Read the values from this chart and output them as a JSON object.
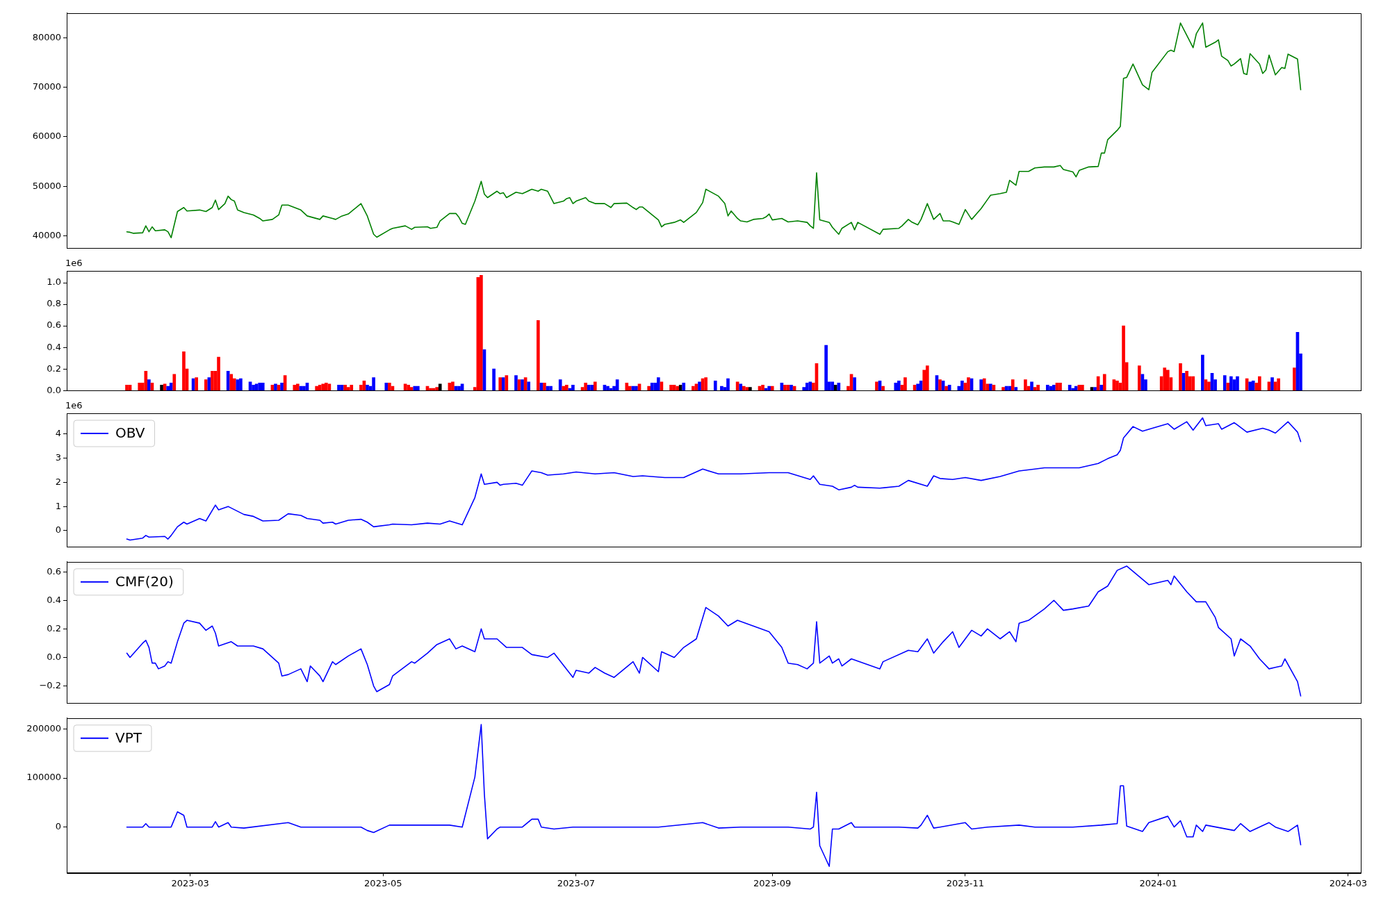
{
  "chart_data": [
    {
      "type": "line",
      "xlim": [
        "2023-01-21",
        "2024-03-05"
      ],
      "ylim": [
        37500,
        85000
      ],
      "yticks": [
        40000,
        50000,
        60000,
        70000,
        80000
      ],
      "tick_labels": "y",
      "x": [
        "2023-02-09",
        "2023-02-10",
        "2023-02-11",
        "2023-02-14",
        "2023-02-15",
        "2023-02-16",
        "2023-02-17",
        "2023-02-18",
        "2023-02-21",
        "2023-02-22",
        "2023-02-23",
        "2023-02-25",
        "2023-02-27",
        "2023-02-28",
        "2023-03-04",
        "2023-03-06",
        "2023-03-08",
        "2023-03-09",
        "2023-03-10",
        "2023-03-12",
        "2023-03-13",
        "2023-03-14",
        "2023-03-15",
        "2023-03-16",
        "2023-03-18",
        "2023-03-21",
        "2023-03-23",
        "2023-03-24",
        "2023-03-27",
        "2023-03-29",
        "2023-03-30",
        "2023-04-01",
        "2023-04-05",
        "2023-04-07",
        "2023-04-11",
        "2023-04-12",
        "2023-04-15",
        "2023-04-16",
        "2023-04-18",
        "2023-04-20",
        "2023-04-24",
        "2023-04-26",
        "2023-04-28",
        "2023-04-29",
        "2023-05-03",
        "2023-05-04",
        "2023-05-08",
        "2023-05-10",
        "2023-05-11",
        "2023-05-15",
        "2023-05-16",
        "2023-05-18",
        "2023-05-19",
        "2023-05-22",
        "2023-05-24",
        "2023-05-25",
        "2023-05-26",
        "2023-05-27",
        "2023-05-30",
        "2023-06-01",
        "2023-06-02",
        "2023-06-03",
        "2023-06-06",
        "2023-06-07",
        "2023-06-08",
        "2023-06-09",
        "2023-06-12",
        "2023-06-14",
        "2023-06-15",
        "2023-06-17",
        "2023-06-19",
        "2023-06-20",
        "2023-06-22",
        "2023-06-24",
        "2023-06-27",
        "2023-06-28",
        "2023-06-29",
        "2023-06-30",
        "2023-07-01",
        "2023-07-04",
        "2023-07-05",
        "2023-07-07",
        "2023-07-10",
        "2023-07-12",
        "2023-07-13",
        "2023-07-17",
        "2023-07-19",
        "2023-07-20",
        "2023-07-21",
        "2023-07-22",
        "2023-07-27",
        "2023-07-28",
        "2023-07-29",
        "2023-08-01",
        "2023-08-03",
        "2023-08-04",
        "2023-08-08",
        "2023-08-10",
        "2023-08-11",
        "2023-08-15",
        "2023-08-17",
        "2023-08-18",
        "2023-08-19",
        "2023-08-21",
        "2023-08-22",
        "2023-08-24",
        "2023-08-26",
        "2023-08-29",
        "2023-08-30",
        "2023-08-31",
        "2023-09-01",
        "2023-09-04",
        "2023-09-06",
        "2023-09-09",
        "2023-09-12",
        "2023-09-13",
        "2023-09-14",
        "2023-09-15",
        "2023-09-16",
        "2023-09-19",
        "2023-09-20",
        "2023-09-22",
        "2023-09-23",
        "2023-09-26",
        "2023-09-27",
        "2023-09-28",
        "2023-10-05",
        "2023-10-06",
        "2023-10-11",
        "2023-10-12",
        "2023-10-14",
        "2023-10-15",
        "2023-10-17",
        "2023-10-18",
        "2023-10-20",
        "2023-10-22",
        "2023-10-24",
        "2023-10-25",
        "2023-10-27",
        "2023-10-28",
        "2023-10-30",
        "2023-11-01",
        "2023-11-03",
        "2023-11-06",
        "2023-11-08",
        "2023-11-09",
        "2023-11-12",
        "2023-11-14",
        "2023-11-15",
        "2023-11-17",
        "2023-11-18",
        "2023-11-21",
        "2023-11-23",
        "2023-11-26",
        "2023-11-29",
        "2023-12-01",
        "2023-12-02",
        "2023-12-05",
        "2023-12-06",
        "2023-12-07",
        "2023-12-10",
        "2023-12-13",
        "2023-12-14",
        "2023-12-15",
        "2023-12-16",
        "2023-12-19",
        "2023-12-20",
        "2023-12-21",
        "2023-12-22",
        "2023-12-24",
        "2023-12-27",
        "2023-12-29",
        "2023-12-30",
        "2024-01-04",
        "2024-01-05",
        "2024-01-06",
        "2024-01-08",
        "2024-01-10",
        "2024-01-12",
        "2024-01-13",
        "2024-01-15",
        "2024-01-16",
        "2024-01-19",
        "2024-01-20",
        "2024-01-21",
        "2024-01-23",
        "2024-01-24",
        "2024-01-25",
        "2024-01-27",
        "2024-01-28",
        "2024-01-29",
        "2024-01-30",
        "2024-02-02",
        "2024-02-03",
        "2024-02-04",
        "2024-02-05",
        "2024-02-07",
        "2024-02-09",
        "2024-02-10",
        "2024-02-11",
        "2024-02-14",
        "2024-02-15"
      ],
      "series": [
        {
          "color": "#008000",
          "values": [
            40800,
            40700,
            40500,
            40600,
            42000,
            40800,
            41800,
            41000,
            41200,
            40800,
            39600,
            44900,
            45700,
            45000,
            45200,
            44900,
            45700,
            47200,
            45300,
            46500,
            48000,
            47300,
            47000,
            45200,
            44700,
            44200,
            43500,
            43000,
            43300,
            44200,
            46200,
            46200,
            45200,
            44000,
            43300,
            44000,
            43500,
            43300,
            44000,
            44400,
            46500,
            44000,
            40300,
            39700,
            41200,
            41500,
            42000,
            41300,
            41700,
            41800,
            41500,
            41700,
            43000,
            44500,
            44500,
            43700,
            42500,
            42300,
            47000,
            51000,
            48400,
            47700,
            49000,
            48500,
            48700,
            47700,
            48800,
            48500,
            48800,
            49400,
            49000,
            49400,
            49000,
            46500,
            47000,
            47500,
            47700,
            46500,
            47000,
            47700,
            47000,
            46500,
            46500,
            45700,
            46500,
            46600,
            45700,
            45300,
            45800,
            45800,
            43200,
            41800,
            42300,
            42700,
            43200,
            42700,
            44700,
            46700,
            49400,
            48000,
            46500,
            44000,
            45000,
            43500,
            43000,
            42800,
            43300,
            43500,
            43800,
            44400,
            43200,
            43500,
            42800,
            43000,
            42700,
            42000,
            41500,
            52700,
            43200,
            42700,
            41700,
            40300,
            41500,
            42700,
            41200,
            42700,
            40300,
            41300,
            41500,
            42000,
            43300,
            42800,
            42200,
            43300,
            46500,
            43300,
            44500,
            43000,
            43000,
            42800,
            42300,
            45300,
            43300,
            45500,
            47300,
            48200,
            48500,
            48800,
            51200,
            50200,
            53000,
            53000,
            53700,
            53900,
            53900,
            54200,
            53400,
            52900,
            51900,
            53200,
            53900,
            54000,
            56700,
            56700,
            59400,
            61300,
            62100,
            71800,
            72000,
            74700,
            70500,
            69500,
            73000,
            77200,
            77500,
            77200,
            83000,
            80500,
            78000,
            80800,
            83000,
            78100,
            79100,
            79600,
            76300,
            75400,
            74300,
            74700,
            75800,
            72800,
            72600,
            76800,
            74700,
            72800,
            73500,
            76500,
            72500,
            74000,
            73800,
            76700,
            75700,
            69500
          ]
        }
      ]
    },
    {
      "type": "bar",
      "xlim": [
        "2023-01-21",
        "2024-03-05"
      ],
      "ylim": [
        0,
        1.11
      ],
      "yticks": [
        {
          "value": 0,
          "label": "0.0"
        },
        0.2,
        0.4,
        0.6,
        0.8,
        {
          "value": 1,
          "label": "1.0"
        }
      ],
      "tick_labels": "y",
      "annotations": [
        "1e6"
      ],
      "x": [
        "2023-02-09",
        "2023-02-10",
        "2023-02-13",
        "2023-02-14",
        "2023-02-15",
        "2023-02-16",
        "2023-02-17",
        "2023-02-20",
        "2023-02-21",
        "2023-02-22",
        "2023-02-23",
        "2023-02-24",
        "2023-02-27",
        "2023-02-28",
        "2023-03-02",
        "2023-03-03",
        "2023-03-06",
        "2023-03-07",
        "2023-03-08",
        "2023-03-09",
        "2023-03-10",
        "2023-03-13",
        "2023-03-14",
        "2023-03-15",
        "2023-03-16",
        "2023-03-17",
        "2023-03-20",
        "2023-03-21",
        "2023-03-22",
        "2023-03-23",
        "2023-03-24",
        "2023-03-27",
        "2023-03-28",
        "2023-03-29",
        "2023-03-30",
        "2023-03-31",
        "2023-04-03",
        "2023-04-04",
        "2023-04-05",
        "2023-04-06",
        "2023-04-07",
        "2023-04-10",
        "2023-04-11",
        "2023-04-12",
        "2023-04-13",
        "2023-04-14",
        "2023-04-17",
        "2023-04-18",
        "2023-04-19",
        "2023-04-20",
        "2023-04-21",
        "2023-04-24",
        "2023-04-25",
        "2023-04-26",
        "2023-04-27",
        "2023-04-28",
        "2023-05-02",
        "2023-05-03",
        "2023-05-04",
        "2023-05-08",
        "2023-05-09",
        "2023-05-10",
        "2023-05-11",
        "2023-05-12",
        "2023-05-15",
        "2023-05-16",
        "2023-05-17",
        "2023-05-18",
        "2023-05-19",
        "2023-05-22",
        "2023-05-23",
        "2023-05-24",
        "2023-05-25",
        "2023-05-26",
        "2023-05-30",
        "2023-05-31",
        "2023-06-01",
        "2023-06-02",
        "2023-06-05",
        "2023-06-07",
        "2023-06-08",
        "2023-06-09",
        "2023-06-12",
        "2023-06-13",
        "2023-06-14",
        "2023-06-15",
        "2023-06-16",
        "2023-06-19",
        "2023-06-20",
        "2023-06-21",
        "2023-06-22",
        "2023-06-23",
        "2023-06-26",
        "2023-06-27",
        "2023-06-28",
        "2023-06-29",
        "2023-06-30",
        "2023-07-03",
        "2023-07-04",
        "2023-07-05",
        "2023-07-06",
        "2023-07-07",
        "2023-07-10",
        "2023-07-11",
        "2023-07-12",
        "2023-07-13",
        "2023-07-14",
        "2023-07-17",
        "2023-07-18",
        "2023-07-19",
        "2023-07-20",
        "2023-07-21",
        "2023-07-24",
        "2023-07-25",
        "2023-07-26",
        "2023-07-27",
        "2023-07-28",
        "2023-07-31",
        "2023-08-01",
        "2023-08-02",
        "2023-08-03",
        "2023-08-04",
        "2023-08-07",
        "2023-08-08",
        "2023-08-09",
        "2023-08-10",
        "2023-08-11",
        "2023-08-14",
        "2023-08-16",
        "2023-08-17",
        "2023-08-18",
        "2023-08-21",
        "2023-08-22",
        "2023-08-23",
        "2023-08-24",
        "2023-08-25",
        "2023-08-28",
        "2023-08-29",
        "2023-08-30",
        "2023-08-31",
        "2023-09-01",
        "2023-09-04",
        "2023-09-05",
        "2023-09-06",
        "2023-09-07",
        "2023-09-08",
        "2023-09-11",
        "2023-09-12",
        "2023-09-13",
        "2023-09-14",
        "2023-09-15",
        "2023-09-18",
        "2023-09-19",
        "2023-09-20",
        "2023-09-21",
        "2023-09-22",
        "2023-09-25",
        "2023-09-26",
        "2023-09-27",
        "2023-10-04",
        "2023-10-05",
        "2023-10-06",
        "2023-10-10",
        "2023-10-11",
        "2023-10-12",
        "2023-10-13",
        "2023-10-16",
        "2023-10-17",
        "2023-10-18",
        "2023-10-19",
        "2023-10-20",
        "2023-10-23",
        "2023-10-24",
        "2023-10-25",
        "2023-10-26",
        "2023-10-27",
        "2023-10-30",
        "2023-10-31",
        "2023-11-01",
        "2023-11-02",
        "2023-11-03",
        "2023-11-06",
        "2023-11-07",
        "2023-11-08",
        "2023-11-09",
        "2023-11-10",
        "2023-11-13",
        "2023-11-14",
        "2023-11-15",
        "2023-11-16",
        "2023-11-17",
        "2023-11-20",
        "2023-11-21",
        "2023-11-22",
        "2023-11-23",
        "2023-11-24",
        "2023-11-27",
        "2023-11-28",
        "2023-11-29",
        "2023-11-30",
        "2023-12-01",
        "2023-12-04",
        "2023-12-05",
        "2023-12-06",
        "2023-12-07",
        "2023-12-08",
        "2023-12-11",
        "2023-12-12",
        "2023-12-13",
        "2023-12-14",
        "2023-12-15",
        "2023-12-18",
        "2023-12-19",
        "2023-12-20",
        "2023-12-21",
        "2023-12-22",
        "2023-12-26",
        "2023-12-27",
        "2023-12-28",
        "2024-01-02",
        "2024-01-03",
        "2024-01-04",
        "2024-01-05",
        "2024-01-08",
        "2024-01-09",
        "2024-01-10",
        "2024-01-11",
        "2024-01-12",
        "2024-01-15",
        "2024-01-16",
        "2024-01-17",
        "2024-01-18",
        "2024-01-19",
        "2024-01-22",
        "2024-01-23",
        "2024-01-24",
        "2024-01-25",
        "2024-01-26",
        "2024-01-29",
        "2024-01-30",
        "2024-01-31",
        "2024-02-01",
        "2024-02-02",
        "2024-02-05",
        "2024-02-06",
        "2024-02-07",
        "2024-02-08",
        "2024-02-13",
        "2024-02-14",
        "2024-02-15"
      ],
      "values": [
        0.05,
        0.05,
        0.07,
        0.07,
        0.18,
        0.1,
        0.07,
        0.05,
        0.06,
        0.04,
        0.07,
        0.15,
        0.36,
        0.2,
        0.11,
        0.12,
        0.1,
        0.12,
        0.18,
        0.18,
        0.31,
        0.18,
        0.15,
        0.11,
        0.1,
        0.11,
        0.08,
        0.05,
        0.06,
        0.07,
        0.07,
        0.05,
        0.06,
        0.05,
        0.07,
        0.14,
        0.05,
        0.06,
        0.04,
        0.04,
        0.07,
        0.04,
        0.05,
        0.06,
        0.07,
        0.06,
        0.05,
        0.05,
        0.05,
        0.03,
        0.05,
        0.05,
        0.09,
        0.05,
        0.04,
        0.12,
        0.07,
        0.07,
        0.04,
        0.06,
        0.05,
        0.03,
        0.04,
        0.04,
        0.04,
        0.02,
        0.02,
        0.03,
        0.06,
        0.07,
        0.08,
        0.04,
        0.04,
        0.06,
        0.03,
        1.05,
        1.07,
        0.38,
        0.2,
        0.12,
        0.12,
        0.14,
        0.14,
        0.1,
        0.1,
        0.12,
        0.08,
        0.65,
        0.07,
        0.07,
        0.04,
        0.04,
        0.1,
        0.04,
        0.05,
        0.02,
        0.05,
        0.03,
        0.07,
        0.05,
        0.05,
        0.08,
        0.05,
        0.04,
        0.02,
        0.04,
        0.1,
        0.07,
        0.04,
        0.04,
        0.04,
        0.06,
        0.04,
        0.07,
        0.07,
        0.12,
        0.08,
        0.05,
        0.05,
        0.04,
        0.05,
        0.07,
        0.04,
        0.06,
        0.08,
        0.11,
        0.12,
        0.09,
        0.04,
        0.03,
        0.11,
        0.08,
        0.06,
        0.04,
        0.03,
        0.03,
        0.04,
        0.05,
        0.02,
        0.04,
        0.04,
        0.07,
        0.05,
        0.05,
        0.05,
        0.04,
        0.03,
        0.07,
        0.08,
        0.07,
        0.25,
        0.42,
        0.08,
        0.08,
        0.05,
        0.07,
        0.04,
        0.15,
        0.12,
        0.08,
        0.09,
        0.04,
        0.07,
        0.09,
        0.05,
        0.12,
        0.05,
        0.06,
        0.09,
        0.19,
        0.23,
        0.14,
        0.1,
        0.09,
        0.04,
        0.05,
        0.04,
        0.09,
        0.07,
        0.12,
        0.11,
        0.1,
        0.11,
        0.06,
        0.06,
        0.05,
        0.03,
        0.04,
        0.04,
        0.1,
        0.03,
        0.1,
        0.04,
        0.08,
        0.03,
        0.05,
        0.05,
        0.04,
        0.05,
        0.07,
        0.07,
        0.05,
        0.02,
        0.04,
        0.05,
        0.05,
        0.03,
        0.03,
        0.13,
        0.05,
        0.15,
        0.1,
        0.09,
        0.07,
        0.6,
        0.26,
        0.23,
        0.15,
        0.1,
        0.13,
        0.21,
        0.19,
        0.12,
        0.25,
        0.16,
        0.18,
        0.13,
        0.13,
        0.33,
        0.1,
        0.08,
        0.16,
        0.1,
        0.14,
        0.07,
        0.13,
        0.1,
        0.13,
        0.11,
        0.08,
        0.09,
        0.07,
        0.13,
        0.08,
        0.12,
        0.08,
        0.11,
        0.21,
        0.54,
        0.34
      ],
      "colors": [
        "#ff0000",
        "#ff0000",
        "#ff0000",
        "#ff0000",
        "#ff0000",
        "#0000ff",
        "#ff0000",
        "#000000",
        "#ff0000",
        "#0000ff",
        "#0000ff",
        "#ff0000",
        "#ff0000",
        "#ff0000",
        "#0000ff",
        "#ff0000",
        "#ff0000",
        "#0000ff",
        "#ff0000",
        "#ff0000",
        "#ff0000",
        "#0000ff",
        "#ff0000",
        "#ff0000",
        "#0000ff",
        "#0000ff",
        "#0000ff",
        "#0000ff",
        "#0000ff",
        "#0000ff",
        "#0000ff",
        "#ff0000",
        "#0000ff",
        "#ff0000",
        "#0000ff",
        "#ff0000",
        "#ff0000",
        "#ff0000",
        "#0000ff",
        "#0000ff",
        "#0000ff",
        "#ff0000",
        "#ff0000",
        "#ff0000",
        "#ff0000",
        "#ff0000",
        "#0000ff",
        "#0000ff",
        "#ff0000",
        "#ff0000",
        "#ff0000",
        "#ff0000",
        "#ff0000",
        "#0000ff",
        "#0000ff",
        "#0000ff",
        "#0000ff",
        "#ff0000",
        "#ff0000",
        "#ff0000",
        "#ff0000",
        "#ff0000",
        "#0000ff",
        "#0000ff",
        "#ff0000",
        "#ff0000",
        "#ff0000",
        "#ff0000",
        "#000000",
        "#ff0000",
        "#ff0000",
        "#0000ff",
        "#0000ff",
        "#0000ff",
        "#ff0000",
        "#ff0000",
        "#ff0000",
        "#0000ff",
        "#0000ff",
        "#ff0000",
        "#0000ff",
        "#ff0000",
        "#0000ff",
        "#ff0000",
        "#0000ff",
        "#ff0000",
        "#0000ff",
        "#ff0000",
        "#0000ff",
        "#ff0000",
        "#0000ff",
        "#0000ff",
        "#0000ff",
        "#ff0000",
        "#ff0000",
        "#0000ff",
        "#0000ff",
        "#ff0000",
        "#ff0000",
        "#0000ff",
        "#0000ff",
        "#ff0000",
        "#0000ff",
        "#0000ff",
        "#0000ff",
        "#0000ff",
        "#0000ff",
        "#ff0000",
        "#ff0000",
        "#0000ff",
        "#0000ff",
        "#ff0000",
        "#ff0000",
        "#0000ff",
        "#0000ff",
        "#0000ff",
        "#ff0000",
        "#ff0000",
        "#ff0000",
        "#ff0000",
        "#000000",
        "#0000ff",
        "#ff0000",
        "#ff0000",
        "#0000ff",
        "#ff0000",
        "#ff0000",
        "#0000ff",
        "#0000ff",
        "#0000ff",
        "#0000ff",
        "#ff0000",
        "#0000ff",
        "#ff0000",
        "#ff0000",
        "#000000",
        "#ff0000",
        "#ff0000",
        "#0000ff",
        "#0000ff",
        "#ff0000",
        "#0000ff",
        "#ff0000",
        "#ff0000",
        "#0000ff",
        "#ff0000",
        "#0000ff",
        "#0000ff",
        "#0000ff",
        "#ff0000",
        "#ff0000",
        "#0000ff",
        "#0000ff",
        "#0000ff",
        "#000000",
        "#0000ff",
        "#ff0000",
        "#ff0000",
        "#0000ff",
        "#ff0000",
        "#0000ff",
        "#ff0000",
        "#0000ff",
        "#0000ff",
        "#ff0000",
        "#ff0000",
        "#ff0000",
        "#0000ff",
        "#0000ff",
        "#ff0000",
        "#ff0000",
        "#0000ff",
        "#ff0000",
        "#0000ff",
        "#ff0000",
        "#0000ff",
        "#0000ff",
        "#0000ff",
        "#ff0000",
        "#ff0000",
        "#0000ff",
        "#0000ff",
        "#ff0000",
        "#ff0000",
        "#0000ff",
        "#ff0000",
        "#ff0000",
        "#0000ff",
        "#0000ff",
        "#ff0000",
        "#0000ff",
        "#ff0000",
        "#ff0000",
        "#0000ff",
        "#ff0000",
        "#ff0000",
        "#0000ff",
        "#0000ff",
        "#0000ff",
        "#ff0000",
        "#ff0000",
        "#0000ff",
        "#0000ff",
        "#0000ff",
        "#ff0000",
        "#ff0000",
        "#000000",
        "#0000ff",
        "#ff0000",
        "#0000ff",
        "#ff0000",
        "#ff0000",
        "#ff0000",
        "#ff0000",
        "#ff0000",
        "#ff0000",
        "#ff0000",
        "#0000ff",
        "#0000ff",
        "#ff0000",
        "#ff0000",
        "#ff0000",
        "#ff0000",
        "#ff0000",
        "#0000ff",
        "#ff0000",
        "#ff0000",
        "#ff0000",
        "#0000ff",
        "#ff0000",
        "#ff0000",
        "#0000ff",
        "#0000ff",
        "#0000ff",
        "#ff0000",
        "#0000ff",
        "#0000ff",
        "#0000ff",
        "#ff0000",
        "#0000ff",
        "#0000ff",
        "#ff0000",
        "#ff0000",
        "#ff0000",
        "#0000ff",
        "#ff0000",
        "#ff0000",
        "#ff0000",
        "#0000ff",
        "#0000ff"
      ]
    },
    {
      "type": "line",
      "xlim": [
        "2023-01-21",
        "2024-03-05"
      ],
      "ylim": [
        -0.67,
        4.86
      ],
      "yticks": [
        0,
        1,
        2,
        3,
        4
      ],
      "tick_labels": "y",
      "annotations": [
        "1e6"
      ],
      "legend": "top left",
      "x": [
        "2023-02-09",
        "2023-02-10",
        "2023-02-14",
        "2023-02-15",
        "2023-02-16",
        "2023-02-21",
        "2023-02-22",
        "2023-02-23",
        "2023-02-25",
        "2023-02-27",
        "2023-02-28",
        "2023-03-04",
        "2023-03-06",
        "2023-03-09",
        "2023-03-10",
        "2023-03-13",
        "2023-03-18",
        "2023-03-21",
        "2023-03-24",
        "2023-03-29",
        "2023-04-01",
        "2023-04-05",
        "2023-04-07",
        "2023-04-11",
        "2023-04-12",
        "2023-04-15",
        "2023-04-16",
        "2023-04-20",
        "2023-04-24",
        "2023-04-26",
        "2023-04-28",
        "2023-05-03",
        "2023-05-04",
        "2023-05-10",
        "2023-05-15",
        "2023-05-19",
        "2023-05-22",
        "2023-05-26",
        "2023-05-30",
        "2023-06-01",
        "2023-06-02",
        "2023-06-06",
        "2023-06-07",
        "2023-06-08",
        "2023-06-12",
        "2023-06-14",
        "2023-06-17",
        "2023-06-20",
        "2023-06-22",
        "2023-06-27",
        "2023-07-01",
        "2023-07-07",
        "2023-07-13",
        "2023-07-19",
        "2023-07-22",
        "2023-07-29",
        "2023-08-04",
        "2023-08-10",
        "2023-08-15",
        "2023-08-22",
        "2023-08-31",
        "2023-09-06",
        "2023-09-13",
        "2023-09-14",
        "2023-09-16",
        "2023-09-20",
        "2023-09-22",
        "2023-09-26",
        "2023-09-27",
        "2023-09-28",
        "2023-10-05",
        "2023-10-11",
        "2023-10-14",
        "2023-10-20",
        "2023-10-22",
        "2023-10-24",
        "2023-10-28",
        "2023-11-01",
        "2023-11-06",
        "2023-11-12",
        "2023-11-18",
        "2023-11-23",
        "2023-11-26",
        "2023-12-01",
        "2023-12-07",
        "2023-12-13",
        "2023-12-16",
        "2023-12-19",
        "2023-12-20",
        "2023-12-21",
        "2023-12-24",
        "2023-12-27",
        "2023-12-29",
        "2024-01-04",
        "2024-01-06",
        "2024-01-10",
        "2024-01-12",
        "2024-01-15",
        "2024-01-16",
        "2024-01-20",
        "2024-01-21",
        "2024-01-25",
        "2024-01-29",
        "2024-02-03",
        "2024-02-05",
        "2024-02-07",
        "2024-02-11",
        "2024-02-14",
        "2024-02-15"
      ],
      "series": [
        {
          "name": "OBV",
          "color": "#0000ff",
          "values": [
            -0.35,
            -0.39,
            -0.31,
            -0.2,
            -0.27,
            -0.24,
            -0.35,
            -0.2,
            0.16,
            0.35,
            0.27,
            0.5,
            0.4,
            1.06,
            0.86,
            1.0,
            0.67,
            0.59,
            0.4,
            0.43,
            0.7,
            0.63,
            0.5,
            0.43,
            0.31,
            0.35,
            0.27,
            0.43,
            0.47,
            0.35,
            0.16,
            0.24,
            0.27,
            0.24,
            0.31,
            0.27,
            0.4,
            0.24,
            1.37,
            2.35,
            1.92,
            2.0,
            1.88,
            1.92,
            1.96,
            1.88,
            2.47,
            2.4,
            2.3,
            2.35,
            2.43,
            2.35,
            2.4,
            2.24,
            2.27,
            2.2,
            2.2,
            2.55,
            2.35,
            2.35,
            2.4,
            2.4,
            2.12,
            2.27,
            1.92,
            1.84,
            1.69,
            1.8,
            1.88,
            1.8,
            1.76,
            1.84,
            2.08,
            1.84,
            2.27,
            2.16,
            2.12,
            2.2,
            2.08,
            2.24,
            2.47,
            2.55,
            2.6,
            2.6,
            2.6,
            2.78,
            2.98,
            3.14,
            3.33,
            3.84,
            4.31,
            4.12,
            4.2,
            4.43,
            4.2,
            4.51,
            4.16,
            4.67,
            4.35,
            4.43,
            4.2,
            4.47,
            4.08,
            4.24,
            4.16,
            4.04,
            4.51,
            4.08,
            3.69
          ]
        }
      ]
    },
    {
      "type": "line",
      "xlim": [
        "2023-01-21",
        "2024-03-05"
      ],
      "ylim": [
        -0.32,
        0.67
      ],
      "yticks": [
        {
          "value": -0.2,
          "label": "−0.2"
        },
        {
          "value": 0,
          "label": "0.0"
        },
        0.2,
        0.4,
        0.6
      ],
      "tick_labels": "y",
      "legend": "top left",
      "x": [
        "2023-02-09",
        "2023-02-10",
        "2023-02-14",
        "2023-02-15",
        "2023-02-16",
        "2023-02-17",
        "2023-02-18",
        "2023-02-19",
        "2023-02-21",
        "2023-02-22",
        "2023-02-23",
        "2023-02-25",
        "2023-02-27",
        "2023-02-28",
        "2023-03-04",
        "2023-03-06",
        "2023-03-08",
        "2023-03-09",
        "2023-03-10",
        "2023-03-14",
        "2023-03-16",
        "2023-03-21",
        "2023-03-24",
        "2023-03-29",
        "2023-03-30",
        "2023-04-01",
        "2023-04-05",
        "2023-04-07",
        "2023-04-08",
        "2023-04-11",
        "2023-04-12",
        "2023-04-15",
        "2023-04-16",
        "2023-04-20",
        "2023-04-24",
        "2023-04-26",
        "2023-04-28",
        "2023-04-29",
        "2023-05-03",
        "2023-05-04",
        "2023-05-10",
        "2023-05-11",
        "2023-05-15",
        "2023-05-18",
        "2023-05-22",
        "2023-05-24",
        "2023-05-26",
        "2023-05-30",
        "2023-06-01",
        "2023-06-02",
        "2023-06-06",
        "2023-06-09",
        "2023-06-14",
        "2023-06-17",
        "2023-06-22",
        "2023-06-24",
        "2023-06-30",
        "2023-07-01",
        "2023-07-05",
        "2023-07-07",
        "2023-07-10",
        "2023-07-13",
        "2023-07-19",
        "2023-07-21",
        "2023-07-22",
        "2023-07-27",
        "2023-07-28",
        "2023-08-01",
        "2023-08-04",
        "2023-08-08",
        "2023-08-11",
        "2023-08-15",
        "2023-08-18",
        "2023-08-21",
        "2023-08-26",
        "2023-08-31",
        "2023-09-04",
        "2023-09-06",
        "2023-09-09",
        "2023-09-12",
        "2023-09-14",
        "2023-09-15",
        "2023-09-16",
        "2023-09-19",
        "2023-09-20",
        "2023-09-22",
        "2023-09-23",
        "2023-09-26",
        "2023-10-05",
        "2023-10-06",
        "2023-10-14",
        "2023-10-17",
        "2023-10-20",
        "2023-10-22",
        "2023-10-25",
        "2023-10-28",
        "2023-10-30",
        "2023-11-03",
        "2023-11-06",
        "2023-11-08",
        "2023-11-12",
        "2023-11-15",
        "2023-11-17",
        "2023-11-18",
        "2023-11-21",
        "2023-11-26",
        "2023-11-29",
        "2023-12-02",
        "2023-12-05",
        "2023-12-10",
        "2023-12-13",
        "2023-12-16",
        "2023-12-19",
        "2023-12-22",
        "2023-12-29",
        "2024-01-04",
        "2024-01-05",
        "2024-01-06",
        "2024-01-10",
        "2024-01-13",
        "2024-01-16",
        "2024-01-19",
        "2024-01-20",
        "2024-01-24",
        "2024-01-25",
        "2024-01-27",
        "2024-01-30",
        "2024-02-02",
        "2024-02-05",
        "2024-02-07",
        "2024-02-09",
        "2024-02-10",
        "2024-02-14",
        "2024-02-15"
      ],
      "series": [
        {
          "name": "CMF(20)",
          "color": "#0000ff",
          "values": [
            0.03,
            0.0,
            0.1,
            0.12,
            0.07,
            -0.04,
            -0.04,
            -0.08,
            -0.06,
            -0.03,
            -0.04,
            0.11,
            0.24,
            0.26,
            0.24,
            0.19,
            0.22,
            0.17,
            0.08,
            0.11,
            0.08,
            0.08,
            0.06,
            -0.04,
            -0.13,
            -0.12,
            -0.08,
            -0.17,
            -0.06,
            -0.13,
            -0.17,
            -0.03,
            -0.05,
            0.01,
            0.06,
            -0.05,
            -0.2,
            -0.24,
            -0.19,
            -0.13,
            -0.03,
            -0.04,
            0.03,
            0.09,
            0.13,
            0.06,
            0.08,
            0.04,
            0.2,
            0.13,
            0.13,
            0.07,
            0.07,
            0.02,
            0.0,
            0.03,
            -0.14,
            -0.09,
            -0.11,
            -0.07,
            -0.11,
            -0.14,
            -0.03,
            -0.11,
            0.0,
            -0.1,
            0.04,
            0.0,
            0.07,
            0.13,
            0.35,
            0.29,
            0.22,
            0.26,
            0.22,
            0.18,
            0.07,
            -0.04,
            -0.05,
            -0.08,
            -0.04,
            0.25,
            -0.04,
            0.01,
            -0.04,
            -0.01,
            -0.06,
            -0.01,
            -0.08,
            -0.03,
            0.05,
            0.04,
            0.13,
            0.03,
            0.11,
            0.18,
            0.07,
            0.19,
            0.15,
            0.2,
            0.13,
            0.18,
            0.11,
            0.24,
            0.26,
            0.34,
            0.4,
            0.33,
            0.34,
            0.36,
            0.46,
            0.5,
            0.61,
            0.64,
            0.51,
            0.54,
            0.51,
            0.57,
            0.46,
            0.39,
            0.39,
            0.28,
            0.21,
            0.13,
            0.01,
            0.13,
            0.08,
            -0.01,
            -0.08,
            -0.07,
            -0.06,
            -0.01,
            -0.17,
            -0.27
          ]
        }
      ]
    },
    {
      "type": "line",
      "xlim": [
        "2023-01-21",
        "2024-03-05"
      ],
      "ylim": [
        -93000,
        222000
      ],
      "yticks": [
        0,
        100000,
        200000
      ],
      "legend": "top left",
      "xticks": [
        "2023-03",
        "2023-05",
        "2023-07",
        "2023-09",
        "2023-11",
        "2024-01",
        "2024-03"
      ],
      "x": [
        "2023-02-09",
        "2023-02-14",
        "2023-02-15",
        "2023-02-16",
        "2023-02-22",
        "2023-02-23",
        "2023-02-25",
        "2023-02-27",
        "2023-02-28",
        "2023-03-04",
        "2023-03-08",
        "2023-03-09",
        "2023-03-10",
        "2023-03-13",
        "2023-03-14",
        "2023-03-18",
        "2023-04-01",
        "2023-04-05",
        "2023-04-16",
        "2023-04-20",
        "2023-04-24",
        "2023-04-26",
        "2023-04-28",
        "2023-05-03",
        "2023-05-22",
        "2023-05-26",
        "2023-05-30",
        "2023-06-01",
        "2023-06-02",
        "2023-06-03",
        "2023-06-06",
        "2023-06-07",
        "2023-06-14",
        "2023-06-17",
        "2023-06-19",
        "2023-06-20",
        "2023-06-24",
        "2023-06-30",
        "2023-07-13",
        "2023-07-27",
        "2023-08-10",
        "2023-08-15",
        "2023-08-22",
        "2023-09-06",
        "2023-09-13",
        "2023-09-14",
        "2023-09-15",
        "2023-09-16",
        "2023-09-19",
        "2023-09-20",
        "2023-09-22",
        "2023-09-26",
        "2023-09-27",
        "2023-10-05",
        "2023-10-11",
        "2023-10-17",
        "2023-10-18",
        "2023-10-20",
        "2023-10-22",
        "2023-10-24",
        "2023-11-01",
        "2023-11-03",
        "2023-11-08",
        "2023-11-18",
        "2023-11-23",
        "2023-12-05",
        "2023-12-14",
        "2023-12-19",
        "2023-12-20",
        "2023-12-21",
        "2023-12-22",
        "2023-12-27",
        "2023-12-29",
        "2024-01-04",
        "2024-01-06",
        "2024-01-08",
        "2024-01-10",
        "2024-01-12",
        "2024-01-13",
        "2024-01-15",
        "2024-01-16",
        "2024-01-25",
        "2024-01-27",
        "2024-01-30",
        "2024-02-05",
        "2024-02-07",
        "2024-02-11",
        "2024-02-14",
        "2024-02-15"
      ],
      "series": [
        {
          "name": "VPT",
          "color": "#0000ff",
          "values": [
            0,
            0,
            7000,
            0,
            0,
            0,
            31000,
            24000,
            0,
            0,
            0,
            11000,
            0,
            9000,
            0,
            -2000,
            9000,
            0,
            0,
            0,
            0,
            -7000,
            -11000,
            4000,
            4000,
            0,
            102000,
            209000,
            67000,
            -24000,
            -4000,
            0,
            0,
            16000,
            16000,
            0,
            -4000,
            0,
            0,
            0,
            9000,
            -2000,
            0,
            0,
            -4000,
            0,
            71000,
            -38000,
            -80000,
            -4000,
            -4000,
            9000,
            0,
            0,
            0,
            -2000,
            4000,
            24000,
            -2000,
            0,
            9000,
            -4000,
            0,
            4000,
            0,
            0,
            4000,
            7000,
            84000,
            84000,
            2000,
            -9000,
            9000,
            22000,
            0,
            13000,
            -20000,
            -20000,
            4000,
            -9000,
            4000,
            -7000,
            7000,
            -9000,
            9000,
            0,
            -9000,
            4000,
            -36000
          ]
        }
      ]
    }
  ]
}
